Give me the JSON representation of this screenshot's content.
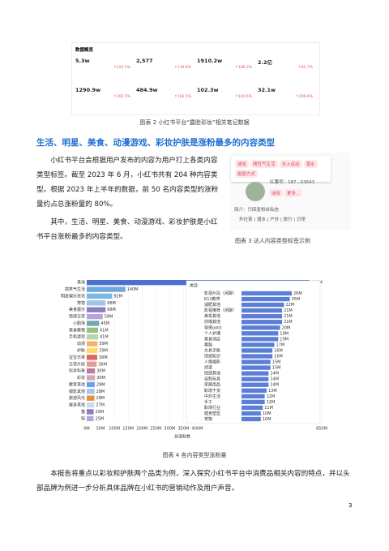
{
  "overview": {
    "title": "数据概览",
    "cells": [
      {
        "value": "5.3w",
        "change": "↑122.5%"
      },
      {
        "value": "2,577",
        "change": "↑110.6%"
      },
      {
        "value": "1910.2w",
        "change": "↑106.3%"
      },
      {
        "value": "2.2亿",
        "change": "↑81.7%"
      },
      {
        "value": "1290.9w",
        "change": "↑102.5%"
      },
      {
        "value": "484.9w",
        "change": "↑102.5%"
      },
      {
        "value": "102.3w",
        "change": "↑144.6%"
      },
      {
        "value": "32.1w",
        "change": "↑206.6%"
      }
    ]
  },
  "caption2": "图表 2 小红书平台“露脸彩妆”相关笔记数据",
  "heading": "生活、明星、美食、动漫游戏、彩妆护肤是涨粉最多的内容类型",
  "paragraphs": [
    "小红书平台会根据用户发布的内容为用户打上各类内容类型标签。截至 2023 年 6 月，小红书共有 204 种内容类型。根据 2023 年上半年的数据，前 50 名内容类型的涨粉量约占总涨粉量的 80%。",
    "其中，生活、明星、美食、动漫游戏、彩妆护肤是小红书平台涨粉最多的内容类型。"
  ],
  "profile": {
    "tags": [
      "谜妆",
      "随性气生活",
      "水上运动",
      "潜水",
      "困居方式"
    ],
    "id": "红薯号：187...03643",
    "chips": [
      "谜妆",
      "更多..."
    ],
    "bio": "简介：只回复粉丝私信",
    "bio2": "外社喜 | 潜水 | 户外 | 旅行 | 日常"
  },
  "caption3": "图表 3 达人内容类型标签示例",
  "chart_data": [
    {
      "type": "hbar",
      "xlabel": "总涨粉数",
      "xlim": [
        0,
        850
      ],
      "xticks": [
        {
          "value": 0,
          "label": "0M"
        },
        {
          "value": 50,
          "label": "50M"
        },
        {
          "value": 100,
          "label": "100M"
        },
        {
          "value": 150,
          "label": "150M"
        },
        {
          "value": 200,
          "label": "200M"
        },
        {
          "value": 250,
          "label": "250M"
        },
        {
          "value": 300,
          "label": "300M"
        },
        {
          "value": 350,
          "label": "350M"
        },
        {
          "value": 400,
          "label": "400M"
        },
        {
          "value": 850,
          "label": "850M"
        }
      ],
      "categories": [
        "其他",
        "搞笑气生活",
        "明星娱乐资讯",
        "穿搭",
        "美食展示",
        "情感日常",
        "小剧场",
        "美食教程",
        "手机游戏",
        "动漫",
        "护肤",
        "宝宝日常",
        "日常片段",
        "科学科普",
        "彩妆",
        "教育其他",
        "摄影其他",
        "旅游风光",
        "健身其他",
        "猫",
        "狗"
      ],
      "values": [
        806,
        140,
        92,
        68,
        68,
        58,
        45,
        41,
        41,
        39,
        39,
        38,
        36,
        30,
        30,
        29,
        28,
        28,
        27,
        25,
        25
      ],
      "value_labels": [
        "806M",
        "140M",
        "92M",
        "68M",
        "68M",
        "58M",
        "45M",
        "41M",
        "41M",
        "39M",
        "39M",
        "38M",
        "36M",
        "30M",
        "30M",
        "29M",
        "28M",
        "28M",
        "27M",
        "25M",
        "25M"
      ],
      "colors": [
        "#4a6fd1",
        "#6fa8dc",
        "#7ab8e0",
        "#9fc5e8",
        "#8e7cc3",
        "#b4a7d6",
        "#76a5af",
        "#93c47d",
        "#b6d7a8",
        "#f6b26b",
        "#ffd966",
        "#e06666",
        "#ea9999",
        "#c27ba0",
        "#d5a6bd",
        "#6d9eeb",
        "#a4c2f4",
        "#e69138",
        "#c9daf8",
        "#8e7cc3",
        "#b4a7d6"
      ]
    },
    {
      "type": "hbar",
      "header": "类目",
      "categories": [
        "影视片段（闲聊）",
        "K12教育",
        "减肥其他",
        "影视推荐（闲聊）",
        "美妆其他",
        "前端其他",
        "穿搭ootd",
        "个人护理",
        "美食测店",
        "舞蹈",
        "文具手账",
        "情感知识",
        "人像摄影",
        "阅读",
        "情感其他",
        "自制玩具",
        "家居用品",
        "职场干货",
        "中外生活",
        "手工",
        "职场行业",
        "健身塑型",
        "宠物"
      ],
      "values": [
        26,
        25,
        22,
        21,
        21,
        21,
        20,
        19,
        19,
        17,
        16,
        16,
        15,
        15,
        14,
        14,
        14,
        13,
        12,
        12,
        11,
        10,
        10
      ],
      "value_labels": [
        "26M",
        "25M",
        "22M",
        "21M",
        "21M",
        "21M",
        "20M",
        "19M",
        "19M",
        "17M",
        "16M",
        "16M",
        "15M",
        "15M",
        "14M",
        "14M",
        "14M",
        "13M",
        "12M",
        "12M",
        "11M",
        "10M",
        "10M"
      ],
      "color": "#5b7fd6"
    }
  ],
  "caption4": "图表 4 各内容类型涨粉量",
  "closing": "本报告将重点以彩妆和护肤两个品类为例，深入探究小红书平台中消费品相关内容的特点，并以头部品牌为例进一步分析具体品牌在小红书的营销动作及用户声音。",
  "page_number": "3"
}
